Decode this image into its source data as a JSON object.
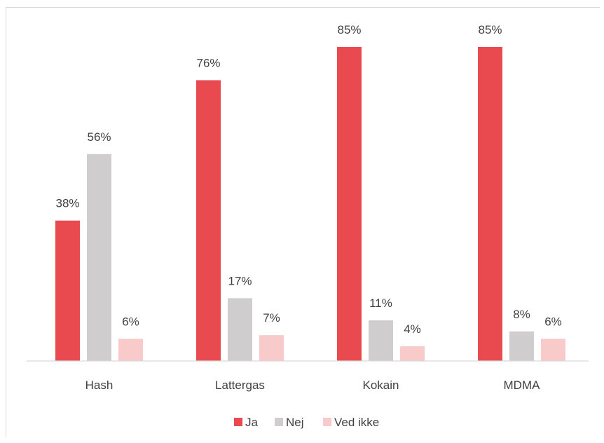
{
  "chart_data": {
    "type": "bar",
    "categories": [
      "Hash",
      "Lattergas",
      "Kokain",
      "MDMA"
    ],
    "series": [
      {
        "name": "Ja",
        "color": "#e84a4f",
        "values": [
          38,
          76,
          85,
          85
        ],
        "labels": [
          "38%",
          "76%",
          "85%",
          "85%"
        ]
      },
      {
        "name": "Nej",
        "color": "#cfcdce",
        "values": [
          56,
          17,
          11,
          8
        ],
        "labels": [
          "56%",
          "17%",
          "11%",
          "8%"
        ]
      },
      {
        "name": "Ved ikke",
        "color": "#f8caca",
        "values": [
          6,
          7,
          4,
          6
        ],
        "labels": [
          "6%",
          "7%",
          "4%",
          "6%"
        ]
      }
    ],
    "ylim": [
      0,
      85
    ],
    "grid": false,
    "legend": "bottom",
    "title": "",
    "xlabel": "",
    "ylabel": ""
  }
}
